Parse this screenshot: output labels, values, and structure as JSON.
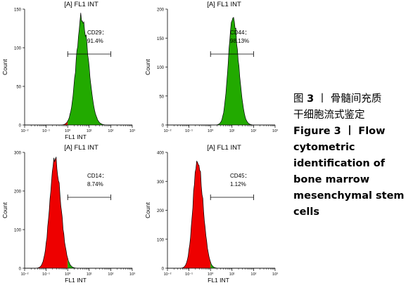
{
  "chart_data": [
    {
      "type": "histogram",
      "title": "[A] FL1 INT",
      "xlabel": "FL1 INT",
      "ylabel": "Count",
      "xscale": "log",
      "xlim": [
        0.01,
        1000
      ],
      "ylim": [
        0,
        150
      ],
      "yticks": [
        "0",
        "50",
        "100",
        "150"
      ],
      "xticks": [
        "10⁻²",
        "10⁻¹",
        "10⁰",
        "10¹",
        "10²",
        "10³"
      ],
      "marker": "CD29",
      "percent": "91.4%",
      "gate": [
        1,
        100
      ],
      "peak": {
        "center": 4.5,
        "height": 148,
        "width": 0.24
      },
      "colors": {
        "positive": "#22aa00",
        "negative": "#ee0000"
      }
    },
    {
      "type": "histogram",
      "title": "[A] FL1 INT",
      "xlabel": "",
      "ylabel": "Count",
      "xscale": "log",
      "xlim": [
        0.01,
        1000
      ],
      "ylim": [
        0,
        200
      ],
      "yticks": [
        "0",
        "50",
        "100",
        "150",
        "200"
      ],
      "xticks": [
        "10⁻²",
        "10⁻¹",
        "10⁰",
        "10¹",
        "10²",
        "10³"
      ],
      "marker": "CD44",
      "percent": "98.13%",
      "gate": [
        1,
        100
      ],
      "peak": {
        "center": 11,
        "height": 197,
        "width": 0.2
      },
      "colors": {
        "positive": "#22aa00",
        "negative": "#ee0000"
      }
    },
    {
      "type": "histogram",
      "title": "[A] FL1 INT",
      "xlabel": "FL1 INT",
      "ylabel": "Count",
      "xscale": "log",
      "xlim": [
        0.01,
        1000
      ],
      "ylim": [
        0,
        300
      ],
      "yticks": [
        "0",
        "100",
        "200",
        "300"
      ],
      "xticks": [
        "10⁻²",
        "10⁻¹",
        "10⁰",
        "10¹",
        "10²",
        "10³"
      ],
      "marker": "CD14",
      "percent": "8.74%",
      "gate": [
        1,
        100
      ],
      "peak": {
        "center": 0.25,
        "height": 298,
        "width": 0.22
      },
      "colors": {
        "positive": "#22aa00",
        "negative": "#ee0000"
      }
    },
    {
      "type": "histogram",
      "title": "[A] FL1 INT",
      "xlabel": "FL1 INT",
      "ylabel": "Count",
      "xscale": "log",
      "xlim": [
        0.01,
        1000
      ],
      "ylim": [
        0,
        400
      ],
      "yticks": [
        "0",
        "100",
        "200",
        "300",
        "400"
      ],
      "xticks": [
        "10⁻²",
        "10⁻¹",
        "10⁰",
        "10¹",
        "10²",
        "10³"
      ],
      "marker": "CD45",
      "percent": "1.12%",
      "gate": [
        1,
        100
      ],
      "peak": {
        "center": 0.25,
        "height": 395,
        "width": 0.2
      },
      "colors": {
        "positive": "#22aa00",
        "negative": "#ee0000"
      }
    }
  ],
  "caption": {
    "cn_prefix": "图 ",
    "cn_num": "3",
    "cn_sep": " 丨 ",
    "cn_text_1": "骨髓间充质",
    "cn_text_2": "干细胞流式鉴定",
    "en_lines": [
      "Figure 3 丨 Flow",
      "cytometric",
      "identification of",
      "bone marrow",
      "mesenchymal stem",
      "cells"
    ]
  }
}
